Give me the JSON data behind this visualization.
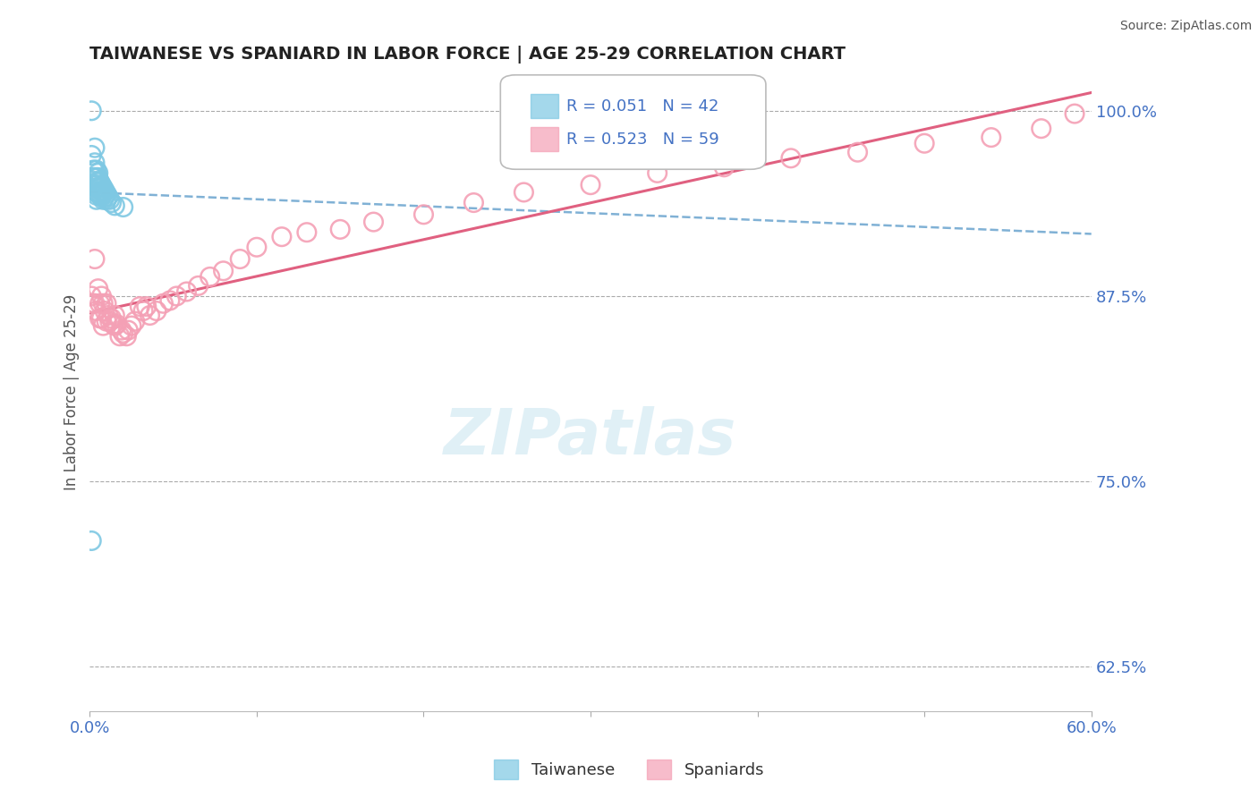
{
  "title": "TAIWANESE VS SPANIARD IN LABOR FORCE | AGE 25-29 CORRELATION CHART",
  "source": "Source: ZipAtlas.com",
  "ylabel": "In Labor Force | Age 25-29",
  "xlim": [
    0.0,
    0.6
  ],
  "ylim": [
    0.595,
    1.025
  ],
  "yticks": [
    1.0,
    0.875,
    0.75,
    0.625
  ],
  "ytick_labels": [
    "100.0%",
    "87.5%",
    "75.0%",
    "62.5%"
  ],
  "xticks": [
    0.0,
    0.1,
    0.2,
    0.3,
    0.4,
    0.5,
    0.6
  ],
  "xtick_labels": [
    "0.0%",
    "",
    "",
    "",
    "",
    "",
    "60.0%"
  ],
  "taiwanese_R": 0.051,
  "taiwanese_N": 42,
  "spaniard_R": 0.523,
  "spaniard_N": 59,
  "taiwanese_color": "#7ec8e3",
  "spaniard_color": "#f4a0b5",
  "trendline_taiwanese_color": "#4a90c4",
  "trendline_spaniard_color": "#e06080",
  "background_color": "#ffffff",
  "taiwanese_x": [
    0.001,
    0.001,
    0.002,
    0.002,
    0.002,
    0.003,
    0.003,
    0.003,
    0.003,
    0.003,
    0.004,
    0.004,
    0.004,
    0.004,
    0.004,
    0.004,
    0.004,
    0.004,
    0.005,
    0.005,
    0.005,
    0.005,
    0.005,
    0.006,
    0.006,
    0.006,
    0.007,
    0.007,
    0.007,
    0.008,
    0.008,
    0.008,
    0.009,
    0.009,
    0.01,
    0.01,
    0.011,
    0.012,
    0.013,
    0.015,
    0.02,
    0.001
  ],
  "taiwanese_y": [
    1.0,
    0.97,
    0.96,
    0.955,
    0.95,
    0.975,
    0.965,
    0.96,
    0.955,
    0.95,
    0.96,
    0.955,
    0.952,
    0.95,
    0.948,
    0.945,
    0.943,
    0.94,
    0.958,
    0.955,
    0.952,
    0.948,
    0.944,
    0.952,
    0.948,
    0.944,
    0.95,
    0.946,
    0.942,
    0.948,
    0.944,
    0.94,
    0.946,
    0.942,
    0.944,
    0.94,
    0.942,
    0.94,
    0.938,
    0.936,
    0.935,
    0.71
  ],
  "spaniard_x": [
    0.001,
    0.002,
    0.003,
    0.003,
    0.004,
    0.005,
    0.006,
    0.006,
    0.007,
    0.007,
    0.008,
    0.008,
    0.009,
    0.01,
    0.01,
    0.011,
    0.012,
    0.013,
    0.014,
    0.015,
    0.015,
    0.016,
    0.018,
    0.019,
    0.02,
    0.022,
    0.023,
    0.025,
    0.027,
    0.03,
    0.032,
    0.034,
    0.036,
    0.04,
    0.044,
    0.048,
    0.052,
    0.058,
    0.065,
    0.072,
    0.08,
    0.09,
    0.1,
    0.115,
    0.13,
    0.15,
    0.17,
    0.2,
    0.23,
    0.26,
    0.3,
    0.34,
    0.38,
    0.42,
    0.46,
    0.5,
    0.54,
    0.57,
    0.59
  ],
  "spaniard_y": [
    0.875,
    0.87,
    0.9,
    0.87,
    0.865,
    0.88,
    0.87,
    0.86,
    0.875,
    0.86,
    0.87,
    0.855,
    0.865,
    0.87,
    0.858,
    0.862,
    0.858,
    0.86,
    0.856,
    0.862,
    0.855,
    0.856,
    0.848,
    0.852,
    0.85,
    0.848,
    0.852,
    0.855,
    0.858,
    0.868,
    0.865,
    0.868,
    0.862,
    0.865,
    0.87,
    0.872,
    0.875,
    0.878,
    0.882,
    0.888,
    0.892,
    0.9,
    0.908,
    0.915,
    0.918,
    0.92,
    0.925,
    0.93,
    0.938,
    0.945,
    0.95,
    0.958,
    0.962,
    0.968,
    0.972,
    0.978,
    0.982,
    0.988,
    0.998
  ]
}
